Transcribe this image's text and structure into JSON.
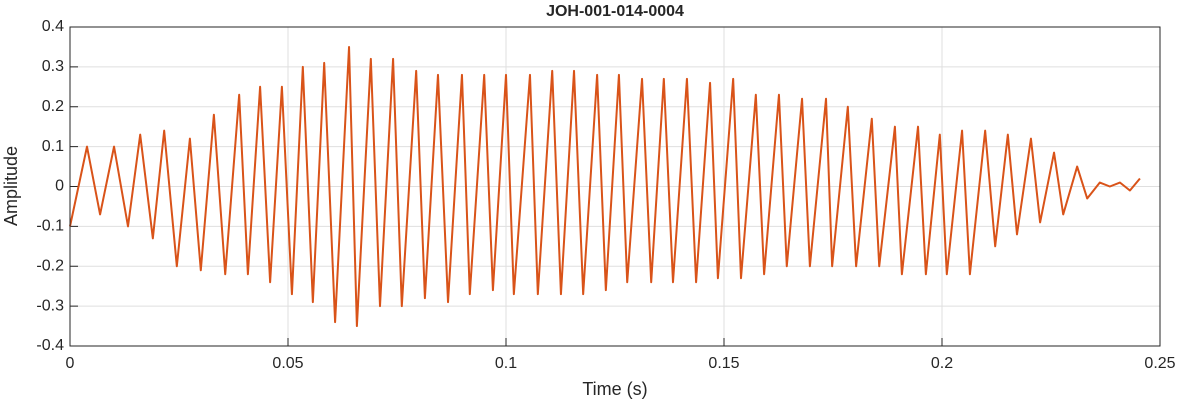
{
  "chart_data": {
    "type": "line",
    "title": "JOH-001-014-0004",
    "xlabel": "Time (s)",
    "ylabel": "Amplitude",
    "xlim": [
      0,
      0.25
    ],
    "xticks": [
      0,
      0.05,
      0.1,
      0.15,
      0.2,
      0.25
    ],
    "ylim": [
      -0.4,
      0.4
    ],
    "yticks": [
      -0.4,
      -0.3,
      -0.2,
      -0.1,
      0,
      0.1,
      0.2,
      0.3,
      0.4
    ],
    "grid": true,
    "series": [
      {
        "color": "#d95319",
        "x": [
          0,
          0.0039,
          0.0069,
          0.0101,
          0.0133,
          0.0161,
          0.019,
          0.0216,
          0.0245,
          0.0275,
          0.03,
          0.033,
          0.0356,
          0.0388,
          0.0408,
          0.0436,
          0.0459,
          0.0486,
          0.0509,
          0.0534,
          0.0557,
          0.0583,
          0.0608,
          0.064,
          0.0658,
          0.069,
          0.0711,
          0.0741,
          0.0761,
          0.0794,
          0.0814,
          0.0844,
          0.0867,
          0.0899,
          0.0917,
          0.095,
          0.097,
          0.1,
          0.1018,
          0.1055,
          0.1073,
          0.1106,
          0.1126,
          0.1156,
          0.1177,
          0.1209,
          0.1229,
          0.1259,
          0.1278,
          0.1312,
          0.1333,
          0.1362,
          0.1383,
          0.1415,
          0.1436,
          0.1468,
          0.1486,
          0.1521,
          0.1539,
          0.1573,
          0.1592,
          0.1626,
          0.1644,
          0.1679,
          0.1697,
          0.1734,
          0.1748,
          0.1784,
          0.1803,
          0.1839,
          0.1856,
          0.1892,
          0.1908,
          0.1945,
          0.1963,
          0.1995,
          0.2011,
          0.2046,
          0.2064,
          0.2099,
          0.2122,
          0.2151,
          0.2172,
          0.2204,
          0.2225,
          0.2257,
          0.2278,
          0.231,
          0.2333,
          0.2362,
          0.2385,
          0.2408,
          0.2431,
          0.2454
        ],
        "values": [
          -0.1,
          0.1,
          -0.07,
          0.1,
          -0.1,
          0.13,
          -0.13,
          0.14,
          -0.2,
          0.12,
          -0.21,
          0.18,
          -0.22,
          0.23,
          -0.22,
          0.25,
          -0.24,
          0.25,
          -0.27,
          0.3,
          -0.29,
          0.31,
          -0.34,
          0.35,
          -0.35,
          0.32,
          -0.3,
          0.32,
          -0.3,
          0.29,
          -0.28,
          0.28,
          -0.29,
          0.28,
          -0.27,
          0.28,
          -0.26,
          0.28,
          -0.27,
          0.28,
          -0.27,
          0.29,
          -0.27,
          0.29,
          -0.27,
          0.28,
          -0.26,
          0.28,
          -0.24,
          0.27,
          -0.24,
          0.27,
          -0.24,
          0.27,
          -0.24,
          0.26,
          -0.23,
          0.27,
          -0.23,
          0.23,
          -0.22,
          0.23,
          -0.2,
          0.22,
          -0.2,
          0.22,
          -0.2,
          0.2,
          -0.2,
          0.17,
          -0.2,
          0.15,
          -0.22,
          0.15,
          -0.22,
          0.13,
          -0.22,
          0.14,
          -0.22,
          0.14,
          -0.15,
          0.13,
          -0.12,
          0.12,
          -0.09,
          0.085,
          -0.07,
          0.05,
          -0.03,
          0.01,
          0,
          0.01,
          -0.01,
          0.02
        ]
      }
    ]
  }
}
